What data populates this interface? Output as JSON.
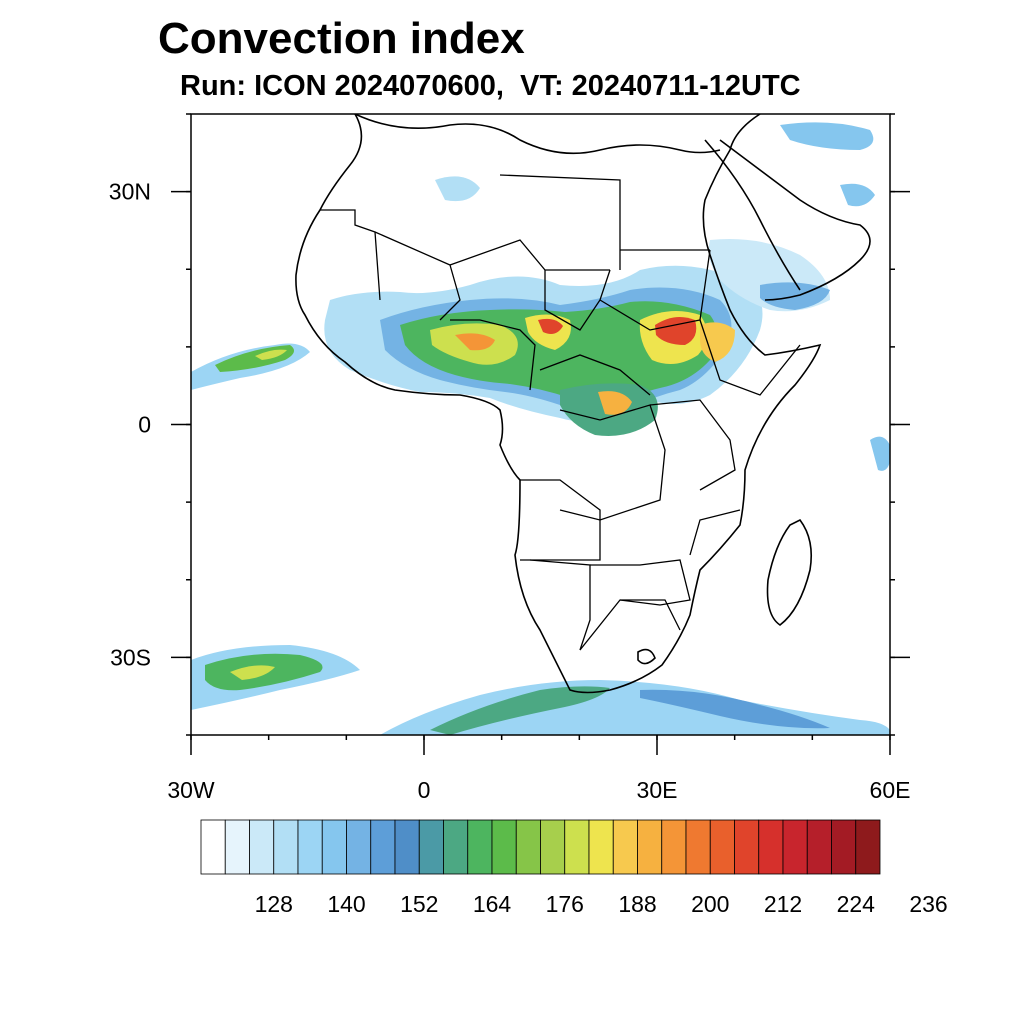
{
  "title": "Convection index",
  "subtitle": "Run: ICON 2024070600,  VT: 20240711-12UTC",
  "map": {
    "lon_range": [
      -30,
      60
    ],
    "lat_range": [
      -40,
      40
    ],
    "lat_ticks": [
      {
        "lat": 30,
        "label": "30N"
      },
      {
        "lat": 0,
        "label": "0"
      },
      {
        "lat": -30,
        "label": "30S"
      }
    ],
    "lon_ticks": [
      {
        "lon": -30,
        "label": "30W"
      },
      {
        "lon": 0,
        "label": "0"
      },
      {
        "lon": 30,
        "label": "30E"
      },
      {
        "lon": 60,
        "label": "60E"
      }
    ]
  },
  "colorbar": {
    "colors": [
      "#ffffff",
      "#e6f4fc",
      "#cbe9f8",
      "#b2dff5",
      "#9cd5f4",
      "#85c6ee",
      "#74b3e4",
      "#5d9ed8",
      "#4f8ec8",
      "#4b9aa6",
      "#4ca883",
      "#4db55f",
      "#5cbb4a",
      "#86c548",
      "#a7cf4c",
      "#cde04e",
      "#eee44e",
      "#f7c94e",
      "#f6b140",
      "#f49537",
      "#ef7930",
      "#e9602c",
      "#e0442b",
      "#d6302c",
      "#c8252d",
      "#b51f2a",
      "#a31b24",
      "#8e1a1c"
    ],
    "labels": [
      "128",
      "140",
      "152",
      "164",
      "176",
      "188",
      "200",
      "212",
      "224",
      "236"
    ]
  }
}
